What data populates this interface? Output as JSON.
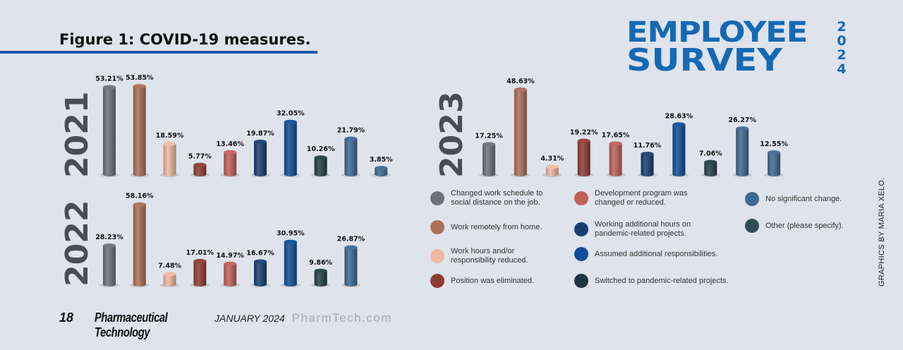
{
  "header": {
    "figure_title": "Figure 1: COVID-19 measures.",
    "logo_line1": "EMPLOYEE",
    "logo_line2": "SURVEY",
    "logo_year": [
      "2",
      "0",
      "2",
      "4"
    ]
  },
  "chart_data": {
    "type": "bar",
    "title": "Figure 1: COVID-19 measures.",
    "unit": "%",
    "legend": [
      {
        "label": "Changed work schedule to social distance on the job.",
        "color": "#6c727c"
      },
      {
        "label": "Work remotely from home.",
        "color": "#ad6f57"
      },
      {
        "label": "Work hours and/or responsibility reduced.",
        "color": "#f0b9a2"
      },
      {
        "label": "Position was eliminated.",
        "color": "#8f3c35"
      },
      {
        "label": "Development program was changed or reduced.",
        "color": "#c2605d"
      },
      {
        "label": "Working additional hours on pandemic-related projects.",
        "color": "#173f73"
      },
      {
        "label": "Assumed additional responsibilities.",
        "color": "#0f4f98"
      },
      {
        "label": "Switched to pandemic-related projects.",
        "color": "#1f3440"
      },
      {
        "label": "No significant change.",
        "color": "#3f6a93"
      },
      {
        "label": "Other (please specify).",
        "color": "#2f4d54"
      }
    ],
    "panels": [
      {
        "year": "2021",
        "values": [
          53.21,
          53.85,
          18.59,
          5.77,
          13.46,
          19.87,
          32.05,
          10.26,
          21.79,
          3.85
        ],
        "labels": [
          "53.21%",
          "53.85%",
          "18.59%",
          "5.77%",
          "13.46%",
          "19.87%",
          "32.05%",
          "10.26%",
          "21.79%",
          "3.85%"
        ],
        "colors": [
          "#6c727c",
          "#ad6f57",
          "#f0b9a2",
          "#8f3c35",
          "#c2605d",
          "#173f73",
          "#0f4f98",
          "#243f48",
          "#3f6a93",
          "#3f6a93"
        ]
      },
      {
        "year": "2022",
        "values": [
          28.23,
          58.16,
          7.48,
          17.01,
          14.97,
          16.67,
          30.95,
          9.86,
          26.87
        ],
        "labels": [
          "28.23%",
          "58.16%",
          "7.48%",
          "17.01%",
          "14.97%",
          "16.67%",
          "30.95%",
          "9.86%",
          "26.87%"
        ],
        "colors": [
          "#6c727c",
          "#ad6f57",
          "#f0b9a2",
          "#8f3c35",
          "#c2605d",
          "#173f73",
          "#0f4f98",
          "#243f48",
          "#3f6a93"
        ]
      },
      {
        "year": "2023",
        "values": [
          17.25,
          48.63,
          4.31,
          19.22,
          17.65,
          11.76,
          28.63,
          7.06,
          26.27,
          12.55
        ],
        "labels": [
          "17.25%",
          "48.63%",
          "4.31%",
          "19.22%",
          "17.65%",
          "11.76%",
          "28.63%",
          "7.06%",
          "26.27%",
          "12.55%"
        ],
        "colors": [
          "#6c727c",
          "#ad6f57",
          "#f0b9a2",
          "#8f3c35",
          "#c2605d",
          "#173f73",
          "#0f4f98",
          "#243f48",
          "#3f6a93",
          "#3f6a93"
        ]
      }
    ]
  },
  "credit": "GRAPHICS BY MARIA XELO.",
  "footer": {
    "page": "18",
    "publication": "Pharmaceutical Technology",
    "date": "JANUARY 2024",
    "site": "PharmTech.com"
  }
}
